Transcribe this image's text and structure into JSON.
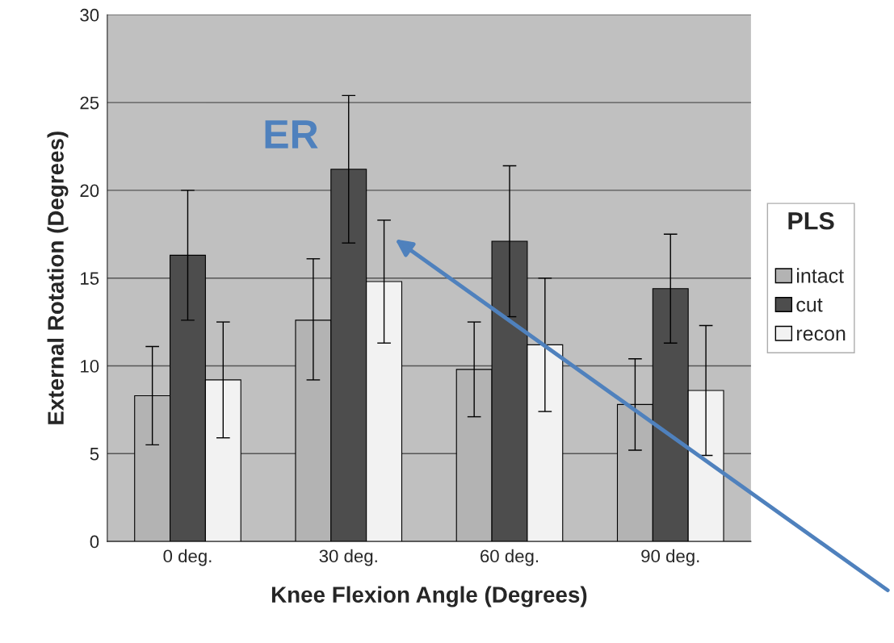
{
  "chart_data": {
    "type": "bar",
    "xlabel": "Knee Flexion Angle (Degrees)",
    "ylabel": "External Rotation (Degrees)",
    "legend_title": "PLS",
    "categories": [
      "0 deg.",
      "30 deg.",
      "60 deg.",
      "90 deg."
    ],
    "series": [
      {
        "name": "intact",
        "color": "#b3b3b3",
        "values": [
          8.3,
          12.6,
          9.8,
          7.8
        ],
        "errors": [
          [
            5.5,
            11.1
          ],
          [
            9.2,
            16.1
          ],
          [
            7.1,
            12.5
          ],
          [
            5.2,
            10.4
          ]
        ]
      },
      {
        "name": "cut",
        "color": "#4d4d4d",
        "values": [
          16.3,
          21.2,
          17.1,
          14.4
        ],
        "errors": [
          [
            12.6,
            20.0
          ],
          [
            17.0,
            25.4
          ],
          [
            12.8,
            21.4
          ],
          [
            11.3,
            17.5
          ]
        ]
      },
      {
        "name": "recon",
        "color": "#f2f2f2",
        "values": [
          9.2,
          14.8,
          11.2,
          8.6
        ],
        "errors": [
          [
            5.9,
            12.5
          ],
          [
            11.3,
            18.3
          ],
          [
            7.4,
            15.0
          ],
          [
            4.9,
            12.3
          ]
        ]
      }
    ],
    "ylim": [
      0,
      30
    ],
    "yticks": [
      0,
      5,
      10,
      15,
      20,
      25,
      30
    ],
    "grid": "y",
    "legend": "right",
    "annotations": [
      "ER"
    ]
  }
}
